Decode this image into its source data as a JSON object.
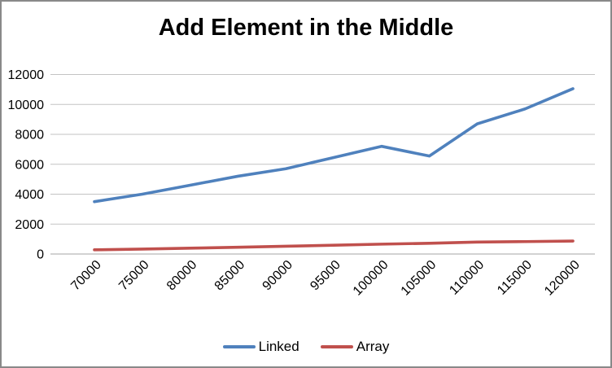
{
  "title": "Add Element in the Middle",
  "chart_data": {
    "type": "line",
    "title": "Add Element in the Middle",
    "categories": [
      "70000",
      "75000",
      "80000",
      "85000",
      "90000",
      "95000",
      "100000",
      "105000",
      "110000",
      "115000",
      "120000"
    ],
    "series": [
      {
        "name": "Linked",
        "color": "#4F81BD",
        "values": [
          3500,
          4000,
          4600,
          5200,
          5700,
          6450,
          7200,
          6550,
          8700,
          9700,
          11050
        ]
      },
      {
        "name": "Array",
        "color": "#C0504D",
        "values": [
          280,
          330,
          390,
          450,
          520,
          590,
          660,
          720,
          800,
          830,
          870
        ]
      }
    ],
    "ylim": [
      0,
      12000
    ],
    "ytick_step": 2000,
    "yticks": [
      0,
      2000,
      4000,
      6000,
      8000,
      10000,
      12000
    ],
    "grid": true,
    "legend_position": "bottom",
    "x_label_rotation_deg": -45,
    "colors": {
      "gridline": "#C3C3C3",
      "axis_line": "#A6A6A6",
      "tick_text": "#000000",
      "title_text": "#000000",
      "background": "#FFFFFF",
      "frame_border": "#898989"
    }
  }
}
